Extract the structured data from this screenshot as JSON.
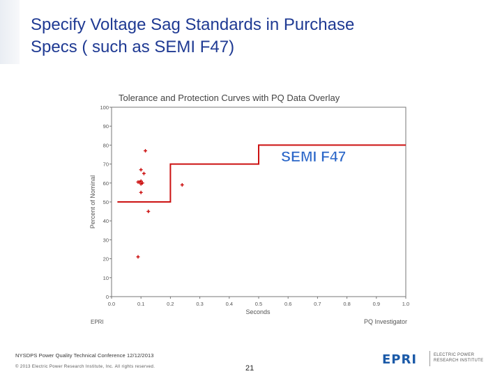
{
  "slide": {
    "title_line1": "Specify Voltage Sag Standards in Purchase",
    "title_line2": "Specs ( such as SEMI F47)",
    "footer_conference": "NYSDPS Power Quality Technical Conference 12/12/2013",
    "footer_copyright": "© 2013 Electric Power Research Institute, Inc. All rights reserved.",
    "page_number": "21",
    "logo_mark": "EPRI",
    "logo_line1": "ELECTRIC POWER",
    "logo_line2": "RESEARCH INSTITUTE"
  },
  "chart_data": {
    "type": "scatter",
    "title": "Tolerance and Protection Curves with PQ Data Overlay",
    "xlabel": "Seconds",
    "ylabel": "Percent of Nominal",
    "xlim": [
      0,
      1.0
    ],
    "ylim": [
      0,
      100
    ],
    "x_ticks": [
      "0.0",
      "0.1",
      "0.2",
      "0.3",
      "0.4",
      "0.5",
      "0.6",
      "0.7",
      "0.8",
      "0.9",
      "1.0"
    ],
    "y_ticks": [
      "0",
      "10",
      "20",
      "30",
      "40",
      "50",
      "60",
      "70",
      "80",
      "90",
      "100"
    ],
    "grid": false,
    "footer_left": "EPRI",
    "footer_right": "PQ Investigator",
    "curve_label": "SEMI F47",
    "curve": {
      "name": "",
      "x": [
        0.02,
        0.2,
        0.2,
        0.5,
        0.5,
        1.0
      ],
      "y": [
        50,
        50,
        70,
        70,
        80,
        80
      ]
    },
    "points": {
      "x": [
        0.09,
        0.095,
        0.1,
        0.1,
        0.1,
        0.105,
        0.1,
        0.115,
        0.11,
        0.125,
        0.24,
        0.09
      ],
      "y": [
        60.5,
        60.5,
        61,
        59.5,
        67,
        60,
        55,
        77,
        65,
        45,
        59,
        21
      ]
    },
    "colors": {
      "curve": "#cc1111",
      "points": "#cc1111",
      "label": "#2a66c8",
      "axis": "#777777",
      "title": "#444444"
    }
  }
}
